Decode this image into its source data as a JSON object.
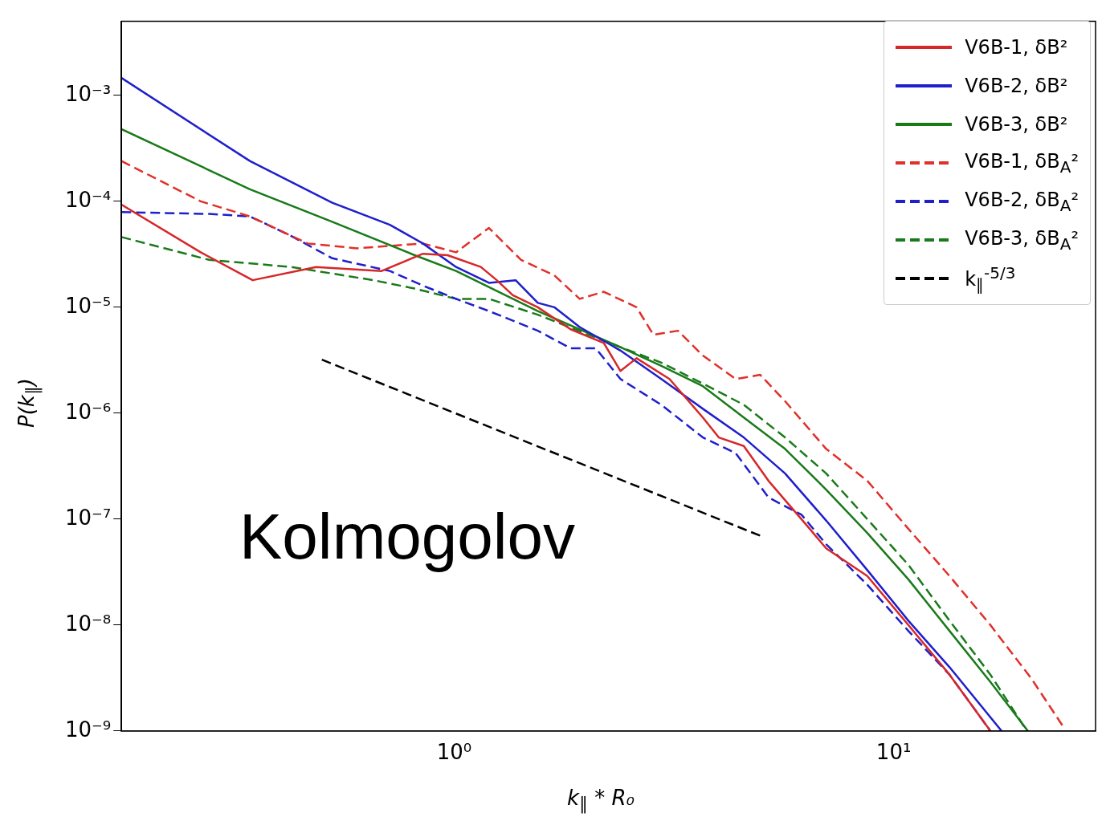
{
  "chart_data": {
    "type": "line",
    "xlabel": "k$_{∥}$ * R₀",
    "ylabel": "P(k$_{∥}$)",
    "log": "xy",
    "grid": false,
    "legend": "top right",
    "marker": "none",
    "xlim": [
      0.175,
      28.8
    ],
    "ylim": [
      1e-09,
      0.005
    ],
    "xticks": [
      {
        "value": 1,
        "label": "10⁰"
      },
      {
        "value": 10,
        "label": "10¹"
      }
    ],
    "yticks": [
      {
        "value": 1e-09,
        "label": "10⁻⁹"
      },
      {
        "value": 1e-08,
        "label": "10⁻⁸"
      },
      {
        "value": 1e-07,
        "label": "10⁻⁷"
      },
      {
        "value": 1e-06,
        "label": "10⁻⁶"
      },
      {
        "value": 1e-05,
        "label": "10⁻⁵"
      },
      {
        "value": 0.0001,
        "label": "10⁻⁴"
      },
      {
        "value": 0.001,
        "label": "10⁻³"
      }
    ],
    "annotations": [
      "Kolmogolov"
    ],
    "series": [
      {
        "name": "V6B-1, δB²",
        "color": "#d62728",
        "line_style": "solid",
        "x": [
          0.175,
          0.265,
          0.348,
          0.485,
          0.684,
          0.849,
          0.966,
          1.15,
          1.25,
          1.36,
          1.55,
          1.84,
          2.19,
          2.39,
          2.6,
          3.09,
          3.68,
          4.0,
          4.56,
          5.19,
          6.44,
          7.02,
          8.71,
          10.8,
          13.4,
          16.6
        ],
        "values": [
          9.3e-05,
          3.3e-05,
          1.8e-05,
          2.4e-05,
          2.2e-05,
          3.2e-05,
          3.1e-05,
          2.4e-05,
          1.8e-05,
          1.3e-05,
          1e-05,
          6.2e-06,
          4.6e-06,
          2.5e-06,
          3.3e-06,
          2.1e-06,
          9.1e-07,
          5.9e-07,
          4.9e-07,
          2.3e-07,
          8.1e-08,
          5.3e-08,
          2.9e-08,
          1e-08,
          3.4e-09,
          1e-09
        ]
      },
      {
        "name": "V6B-2, δB²",
        "color": "#1f1fcc",
        "line_style": "solid",
        "x": [
          0.175,
          0.343,
          0.528,
          0.714,
          0.849,
          1.01,
          1.2,
          1.38,
          1.55,
          1.69,
          1.93,
          2.39,
          2.96,
          3.68,
          4.56,
          5.66,
          7.02,
          8.71,
          10.8,
          13.4,
          17.6
        ],
        "values": [
          0.00146,
          0.00024,
          9.7e-05,
          6e-05,
          4e-05,
          2.4e-05,
          1.7e-05,
          1.8e-05,
          1.1e-05,
          1e-05,
          6.5e-06,
          3.9e-06,
          2.1e-06,
          1.1e-06,
          5.9e-07,
          2.7e-07,
          9.7e-08,
          3.3e-08,
          1.1e-08,
          4e-09,
          1e-09
        ]
      },
      {
        "name": "V6B-3, δB²",
        "color": "#1a7a1a",
        "line_style": "solid",
        "x": [
          0.175,
          0.343,
          0.528,
          0.813,
          1.01,
          1.55,
          2.39,
          2.96,
          3.68,
          4.56,
          5.66,
          7.02,
          8.71,
          10.8,
          13.4,
          16.6,
          20.2
        ],
        "values": [
          0.00048,
          0.00013,
          6.4e-05,
          3.1e-05,
          2.2e-05,
          9.2e-06,
          4.2e-06,
          2.8e-06,
          1.8e-06,
          9.1e-07,
          4.6e-07,
          1.9e-07,
          7.4e-08,
          2.7e-08,
          8.8e-09,
          2.9e-09,
          1e-09
        ]
      },
      {
        "name": "V6B-1, δB$_{A}$²",
        "color": "#e0302a",
        "line_style": "dashed",
        "x": [
          0.175,
          0.265,
          0.343,
          0.464,
          0.601,
          0.849,
          1.01,
          1.2,
          1.42,
          1.69,
          1.93,
          2.19,
          2.6,
          2.84,
          3.23,
          3.68,
          4.37,
          4.97,
          5.66,
          7.02,
          8.71,
          10.8,
          13.4,
          16.6,
          20.6,
          24.3
        ],
        "values": [
          0.00024,
          0.0001,
          7.2e-05,
          4e-05,
          3.6e-05,
          4e-05,
          3.3e-05,
          5.6e-05,
          2.8e-05,
          2e-05,
          1.2e-05,
          1.4e-05,
          1e-05,
          5.5e-06,
          6e-06,
          3.5e-06,
          2.1e-06,
          2.3e-06,
          1.3e-06,
          4.6e-07,
          2.3e-07,
          8.1e-08,
          2.9e-08,
          1e-08,
          3.1e-09,
          1.1e-09
        ]
      },
      {
        "name": "V6B-2, δB$_{A}$²",
        "color": "#1f1fcc",
        "line_style": "dashed",
        "x": [
          0.175,
          0.277,
          0.343,
          0.426,
          0.528,
          0.714,
          0.849,
          1.01,
          1.2,
          1.55,
          1.84,
          2.1,
          2.39,
          2.96,
          3.68,
          4.37,
          5.19,
          6.17,
          7.02,
          8.71,
          10.8,
          13.4,
          16.6
        ],
        "values": [
          7.9e-05,
          7.6e-05,
          7.2e-05,
          4.7e-05,
          2.9e-05,
          2.2e-05,
          1.6e-05,
          1.2e-05,
          9.2e-06,
          6e-06,
          4.1e-06,
          4.1e-06,
          2.1e-06,
          1.2e-06,
          5.9e-07,
          4.2e-07,
          1.6e-07,
          1.1e-07,
          5.8e-08,
          2.4e-08,
          8.8e-09,
          3.4e-09,
          1e-09
        ]
      },
      {
        "name": "V6B-3, δB$_{A}$²",
        "color": "#1a7a1a",
        "line_style": "dashed",
        "x": [
          0.175,
          0.277,
          0.426,
          0.655,
          0.813,
          1.01,
          1.2,
          1.55,
          2.39,
          2.96,
          3.68,
          4.56,
          5.66,
          7.02,
          8.71,
          10.8,
          13.4,
          16.6,
          19.8
        ],
        "values": [
          4.6e-05,
          2.8e-05,
          2.4e-05,
          1.8e-05,
          1.5e-05,
          1.2e-05,
          1.2e-05,
          8.5e-06,
          4.2e-06,
          3e-06,
          1.9e-06,
          1.2e-06,
          5.9e-07,
          2.7e-07,
          1e-07,
          3.7e-08,
          1.1e-08,
          3.4e-09,
          1.1e-09
        ]
      },
      {
        "name": "k$_{∥}$$^{-5/3}$",
        "color": "#000000",
        "line_style": "dashed",
        "x": [
          0.5,
          5
        ],
        "values": [
          3.2e-06,
          6.9e-08
        ]
      }
    ]
  }
}
